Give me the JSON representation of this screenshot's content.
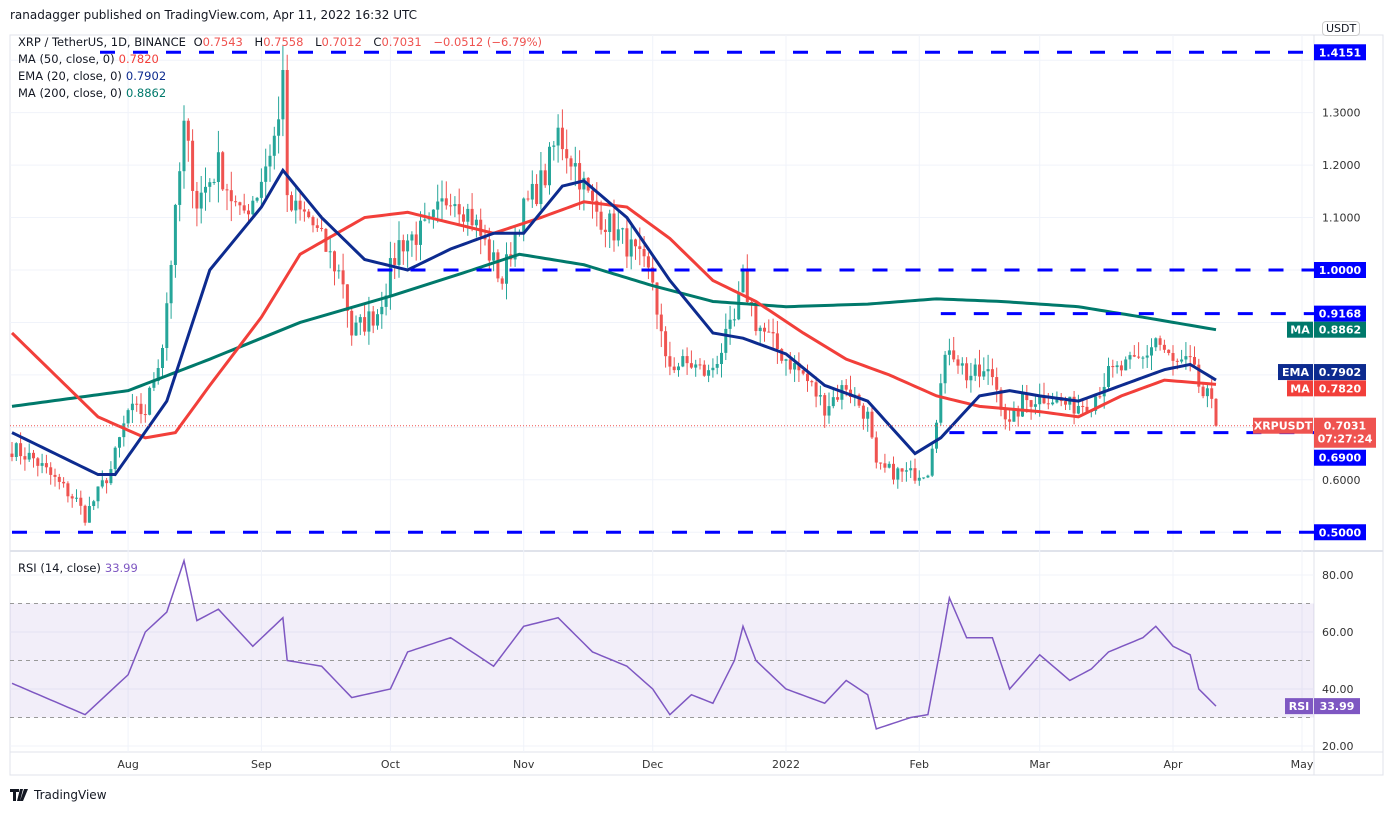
{
  "published": "ranadagger published on TradingView.com, Apr 11, 2022 16:32 UTC",
  "legend": {
    "symbol": "XRP / TetherUS, 1D, BINANCE",
    "o_label": "O",
    "o": "0.7543",
    "h_label": "H",
    "h": "0.7558",
    "l_label": "L",
    "l": "0.7012",
    "c_label": "C",
    "c": "0.7031",
    "change": "−0.0512 (−6.79%)",
    "ma50": {
      "label": "MA (50, close, 0)",
      "value": "0.7820"
    },
    "ema20": {
      "label": "EMA (20, close, 0)",
      "value": "0.7902"
    },
    "ma200": {
      "label": "MA (200, close, 0)",
      "value": "0.8862"
    },
    "rsi": {
      "label": "RSI (14, close)",
      "value": "33.99"
    }
  },
  "colors": {
    "up": "#26a69a",
    "down": "#ef5350",
    "ma50": "#f23f3a",
    "ema20": "#0d2b8f",
    "ma200": "#00796b",
    "level": "#0000ff",
    "rsi": "#7e57c2"
  },
  "currency": "USDT",
  "footer": "TradingView",
  "chart_data": {
    "type": "candlestick",
    "title": "XRP / TetherUS, 1D, BINANCE",
    "start_date": "2021-07-05",
    "ylim": [
      0.47,
      1.45
    ],
    "price_ticks": [
      "1.3000",
      "1.2000",
      "1.1000",
      "0.6000"
    ],
    "x_ticks": [
      {
        "label": "Aug",
        "date": "2021-08-01"
      },
      {
        "label": "Sep",
        "date": "2021-09-01"
      },
      {
        "label": "Oct",
        "date": "2021-10-01"
      },
      {
        "label": "Nov",
        "date": "2021-11-01"
      },
      {
        "label": "Dec",
        "date": "2021-12-01"
      },
      {
        "label": "2022",
        "date": "2022-01-01"
      },
      {
        "label": "Feb",
        "date": "2022-02-01"
      },
      {
        "label": "Mar",
        "date": "2022-03-01"
      },
      {
        "label": "Apr",
        "date": "2022-04-01"
      },
      {
        "label": "May",
        "date": "2022-05-01"
      }
    ],
    "levels": [
      {
        "value": 1.4151,
        "label": "1.4151",
        "from": "2021-08-06"
      },
      {
        "value": 1.0,
        "label": "1.0000",
        "from": "2021-09-28"
      },
      {
        "value": 0.9168,
        "label": "0.9168",
        "from": "2022-02-06"
      },
      {
        "value": 0.69,
        "label": "0.6900",
        "from": "2022-02-08"
      },
      {
        "value": 0.5,
        "label": "0.5000",
        "from": "2021-07-05"
      }
    ],
    "last": {
      "symbol": "XRPUSDT",
      "price": 0.7031,
      "label": "0.7031",
      "countdown": "07:27:24"
    },
    "ma_tags": [
      {
        "name": "MA",
        "value": 0.8862,
        "label": "0.8862",
        "color": "#00796b"
      },
      {
        "name": "EMA",
        "value": 0.7902,
        "label": "0.7902",
        "color": "#0d2b8f"
      },
      {
        "name": "MA",
        "value": 0.782,
        "label": "0.7820",
        "color": "#f23f3a"
      }
    ],
    "close_keypoints": [
      [
        "2021-07-05",
        0.66
      ],
      [
        "2021-07-10",
        0.64
      ],
      [
        "2021-07-20",
        0.56
      ],
      [
        "2021-07-22",
        0.53
      ],
      [
        "2021-07-28",
        0.62
      ],
      [
        "2021-08-01",
        0.73
      ],
      [
        "2021-08-05",
        0.73
      ],
      [
        "2021-08-09",
        0.86
      ],
      [
        "2021-08-12",
        1.1
      ],
      [
        "2021-08-14",
        1.27
      ],
      [
        "2021-08-17",
        1.13
      ],
      [
        "2021-08-22",
        1.2
      ],
      [
        "2021-08-27",
        1.1
      ],
      [
        "2021-08-31",
        1.15
      ],
      [
        "2021-09-05",
        1.28
      ],
      [
        "2021-09-06",
        1.4
      ],
      [
        "2021-09-07",
        1.12
      ],
      [
        "2021-09-12",
        1.1
      ],
      [
        "2021-09-20",
        0.98
      ],
      [
        "2021-09-22",
        0.88
      ],
      [
        "2021-09-28",
        0.92
      ],
      [
        "2021-10-03",
        1.05
      ],
      [
        "2021-10-10",
        1.08
      ],
      [
        "2021-10-15",
        1.15
      ],
      [
        "2021-10-20",
        1.1
      ],
      [
        "2021-10-27",
        0.98
      ],
      [
        "2021-10-31",
        1.1
      ],
      [
        "2021-11-06",
        1.18
      ],
      [
        "2021-11-09",
        1.26
      ],
      [
        "2021-11-13",
        1.2
      ],
      [
        "2021-11-17",
        1.12
      ],
      [
        "2021-11-25",
        1.05
      ],
      [
        "2021-12-01",
        0.98
      ],
      [
        "2021-12-04",
        0.82
      ],
      [
        "2021-12-10",
        0.82
      ],
      [
        "2021-12-14",
        0.8
      ],
      [
        "2021-12-20",
        0.9
      ],
      [
        "2021-12-22",
        0.98
      ],
      [
        "2021-12-25",
        0.9
      ],
      [
        "2021-12-31",
        0.84
      ],
      [
        "2022-01-05",
        0.8
      ],
      [
        "2022-01-10",
        0.74
      ],
      [
        "2022-01-15",
        0.78
      ],
      [
        "2022-01-20",
        0.72
      ],
      [
        "2022-01-22",
        0.62
      ],
      [
        "2022-01-30",
        0.61
      ],
      [
        "2022-02-03",
        0.62
      ],
      [
        "2022-02-06",
        0.78
      ],
      [
        "2022-02-08",
        0.86
      ],
      [
        "2022-02-12",
        0.8
      ],
      [
        "2022-02-18",
        0.8
      ],
      [
        "2022-02-22",
        0.7
      ],
      [
        "2022-02-25",
        0.75
      ],
      [
        "2022-03-03",
        0.76
      ],
      [
        "2022-03-08",
        0.74
      ],
      [
        "2022-03-13",
        0.75
      ],
      [
        "2022-03-17",
        0.8
      ],
      [
        "2022-03-25",
        0.83
      ],
      [
        "2022-03-28",
        0.87
      ],
      [
        "2022-04-01",
        0.82
      ],
      [
        "2022-04-05",
        0.82
      ],
      [
        "2022-04-08",
        0.76
      ],
      [
        "2022-04-10",
        0.7543
      ],
      [
        "2022-04-11",
        0.7031
      ]
    ],
    "ema20_keypoints": [
      [
        "2021-07-05",
        0.69
      ],
      [
        "2021-07-25",
        0.61
      ],
      [
        "2021-07-29",
        0.61
      ],
      [
        "2021-08-10",
        0.75
      ],
      [
        "2021-08-20",
        1.0
      ],
      [
        "2021-09-01",
        1.12
      ],
      [
        "2021-09-06",
        1.19
      ],
      [
        "2021-09-15",
        1.1
      ],
      [
        "2021-09-25",
        1.02
      ],
      [
        "2021-10-05",
        1.0
      ],
      [
        "2021-10-15",
        1.04
      ],
      [
        "2021-10-25",
        1.07
      ],
      [
        "2021-11-01",
        1.07
      ],
      [
        "2021-11-10",
        1.16
      ],
      [
        "2021-11-15",
        1.17
      ],
      [
        "2021-11-25",
        1.1
      ],
      [
        "2021-12-05",
        0.98
      ],
      [
        "2021-12-15",
        0.88
      ],
      [
        "2021-12-22",
        0.87
      ],
      [
        "2022-01-01",
        0.84
      ],
      [
        "2022-01-10",
        0.78
      ],
      [
        "2022-01-20",
        0.75
      ],
      [
        "2022-01-31",
        0.65
      ],
      [
        "2022-02-06",
        0.68
      ],
      [
        "2022-02-15",
        0.76
      ],
      [
        "2022-02-22",
        0.77
      ],
      [
        "2022-03-01",
        0.76
      ],
      [
        "2022-03-10",
        0.75
      ],
      [
        "2022-03-20",
        0.78
      ],
      [
        "2022-03-30",
        0.81
      ],
      [
        "2022-04-05",
        0.82
      ],
      [
        "2022-04-11",
        0.7902
      ]
    ],
    "ma50_keypoints": [
      [
        "2021-07-05",
        0.88
      ],
      [
        "2021-07-15",
        0.8
      ],
      [
        "2021-07-25",
        0.72
      ],
      [
        "2021-08-05",
        0.68
      ],
      [
        "2021-08-12",
        0.69
      ],
      [
        "2021-08-20",
        0.78
      ],
      [
        "2021-09-01",
        0.91
      ],
      [
        "2021-09-10",
        1.03
      ],
      [
        "2021-09-25",
        1.1
      ],
      [
        "2021-10-05",
        1.11
      ],
      [
        "2021-10-15",
        1.09
      ],
      [
        "2021-10-25",
        1.07
      ],
      [
        "2021-11-05",
        1.1
      ],
      [
        "2021-11-15",
        1.13
      ],
      [
        "2021-11-25",
        1.12
      ],
      [
        "2021-12-05",
        1.06
      ],
      [
        "2021-12-15",
        0.98
      ],
      [
        "2021-12-25",
        0.94
      ],
      [
        "2022-01-05",
        0.88
      ],
      [
        "2022-01-15",
        0.83
      ],
      [
        "2022-01-25",
        0.8
      ],
      [
        "2022-02-05",
        0.76
      ],
      [
        "2022-02-15",
        0.74
      ],
      [
        "2022-03-01",
        0.73
      ],
      [
        "2022-03-10",
        0.72
      ],
      [
        "2022-03-20",
        0.76
      ],
      [
        "2022-03-30",
        0.79
      ],
      [
        "2022-04-11",
        0.782
      ]
    ],
    "ma200_keypoints": [
      [
        "2021-07-05",
        0.74
      ],
      [
        "2021-08-01",
        0.77
      ],
      [
        "2021-08-20",
        0.83
      ],
      [
        "2021-09-10",
        0.9
      ],
      [
        "2021-10-01",
        0.95
      ],
      [
        "2021-10-20",
        1.0
      ],
      [
        "2021-10-31",
        1.03
      ],
      [
        "2021-11-15",
        1.01
      ],
      [
        "2021-12-01",
        0.97
      ],
      [
        "2021-12-15",
        0.94
      ],
      [
        "2022-01-01",
        0.93
      ],
      [
        "2022-01-20",
        0.935
      ],
      [
        "2022-02-05",
        0.945
      ],
      [
        "2022-02-20",
        0.94
      ],
      [
        "2022-03-10",
        0.93
      ],
      [
        "2022-03-25",
        0.91
      ],
      [
        "2022-04-11",
        0.8862
      ]
    ],
    "rsi": {
      "ylim": [
        20,
        85
      ],
      "ticks": [
        "80.00",
        "60.00",
        "40.00",
        "20.00"
      ],
      "band": [
        30,
        70
      ],
      "mid": 50,
      "keypoints": [
        [
          "2021-07-05",
          42
        ],
        [
          "2021-07-22",
          31
        ],
        [
          "2021-08-01",
          45
        ],
        [
          "2021-08-05",
          60
        ],
        [
          "2021-08-10",
          67
        ],
        [
          "2021-08-14",
          85
        ],
        [
          "2021-08-17",
          64
        ],
        [
          "2021-08-22",
          68
        ],
        [
          "2021-08-30",
          55
        ],
        [
          "2021-09-06",
          65
        ],
        [
          "2021-09-07",
          50
        ],
        [
          "2021-09-15",
          48
        ],
        [
          "2021-09-22",
          37
        ],
        [
          "2021-10-01",
          40
        ],
        [
          "2021-10-05",
          53
        ],
        [
          "2021-10-15",
          58
        ],
        [
          "2021-10-25",
          48
        ],
        [
          "2021-11-01",
          62
        ],
        [
          "2021-11-09",
          65
        ],
        [
          "2021-11-17",
          53
        ],
        [
          "2021-11-25",
          48
        ],
        [
          "2021-12-01",
          40
        ],
        [
          "2021-12-05",
          31
        ],
        [
          "2021-12-10",
          38
        ],
        [
          "2021-12-15",
          35
        ],
        [
          "2021-12-20",
          50
        ],
        [
          "2021-12-22",
          62
        ],
        [
          "2021-12-25",
          50
        ],
        [
          "2022-01-01",
          40
        ],
        [
          "2022-01-10",
          35
        ],
        [
          "2022-01-15",
          43
        ],
        [
          "2022-01-20",
          38
        ],
        [
          "2022-01-22",
          26
        ],
        [
          "2022-01-30",
          30
        ],
        [
          "2022-02-03",
          31
        ],
        [
          "2022-02-06",
          55
        ],
        [
          "2022-02-08",
          72
        ],
        [
          "2022-02-12",
          58
        ],
        [
          "2022-02-18",
          58
        ],
        [
          "2022-02-22",
          40
        ],
        [
          "2022-03-01",
          52
        ],
        [
          "2022-03-08",
          43
        ],
        [
          "2022-03-13",
          47
        ],
        [
          "2022-03-17",
          53
        ],
        [
          "2022-03-25",
          58
        ],
        [
          "2022-03-28",
          62
        ],
        [
          "2022-04-01",
          55
        ],
        [
          "2022-04-05",
          52
        ],
        [
          "2022-04-07",
          40
        ],
        [
          "2022-04-11",
          33.99
        ]
      ],
      "tag": "RSI",
      "tag_value": "33.99"
    }
  }
}
